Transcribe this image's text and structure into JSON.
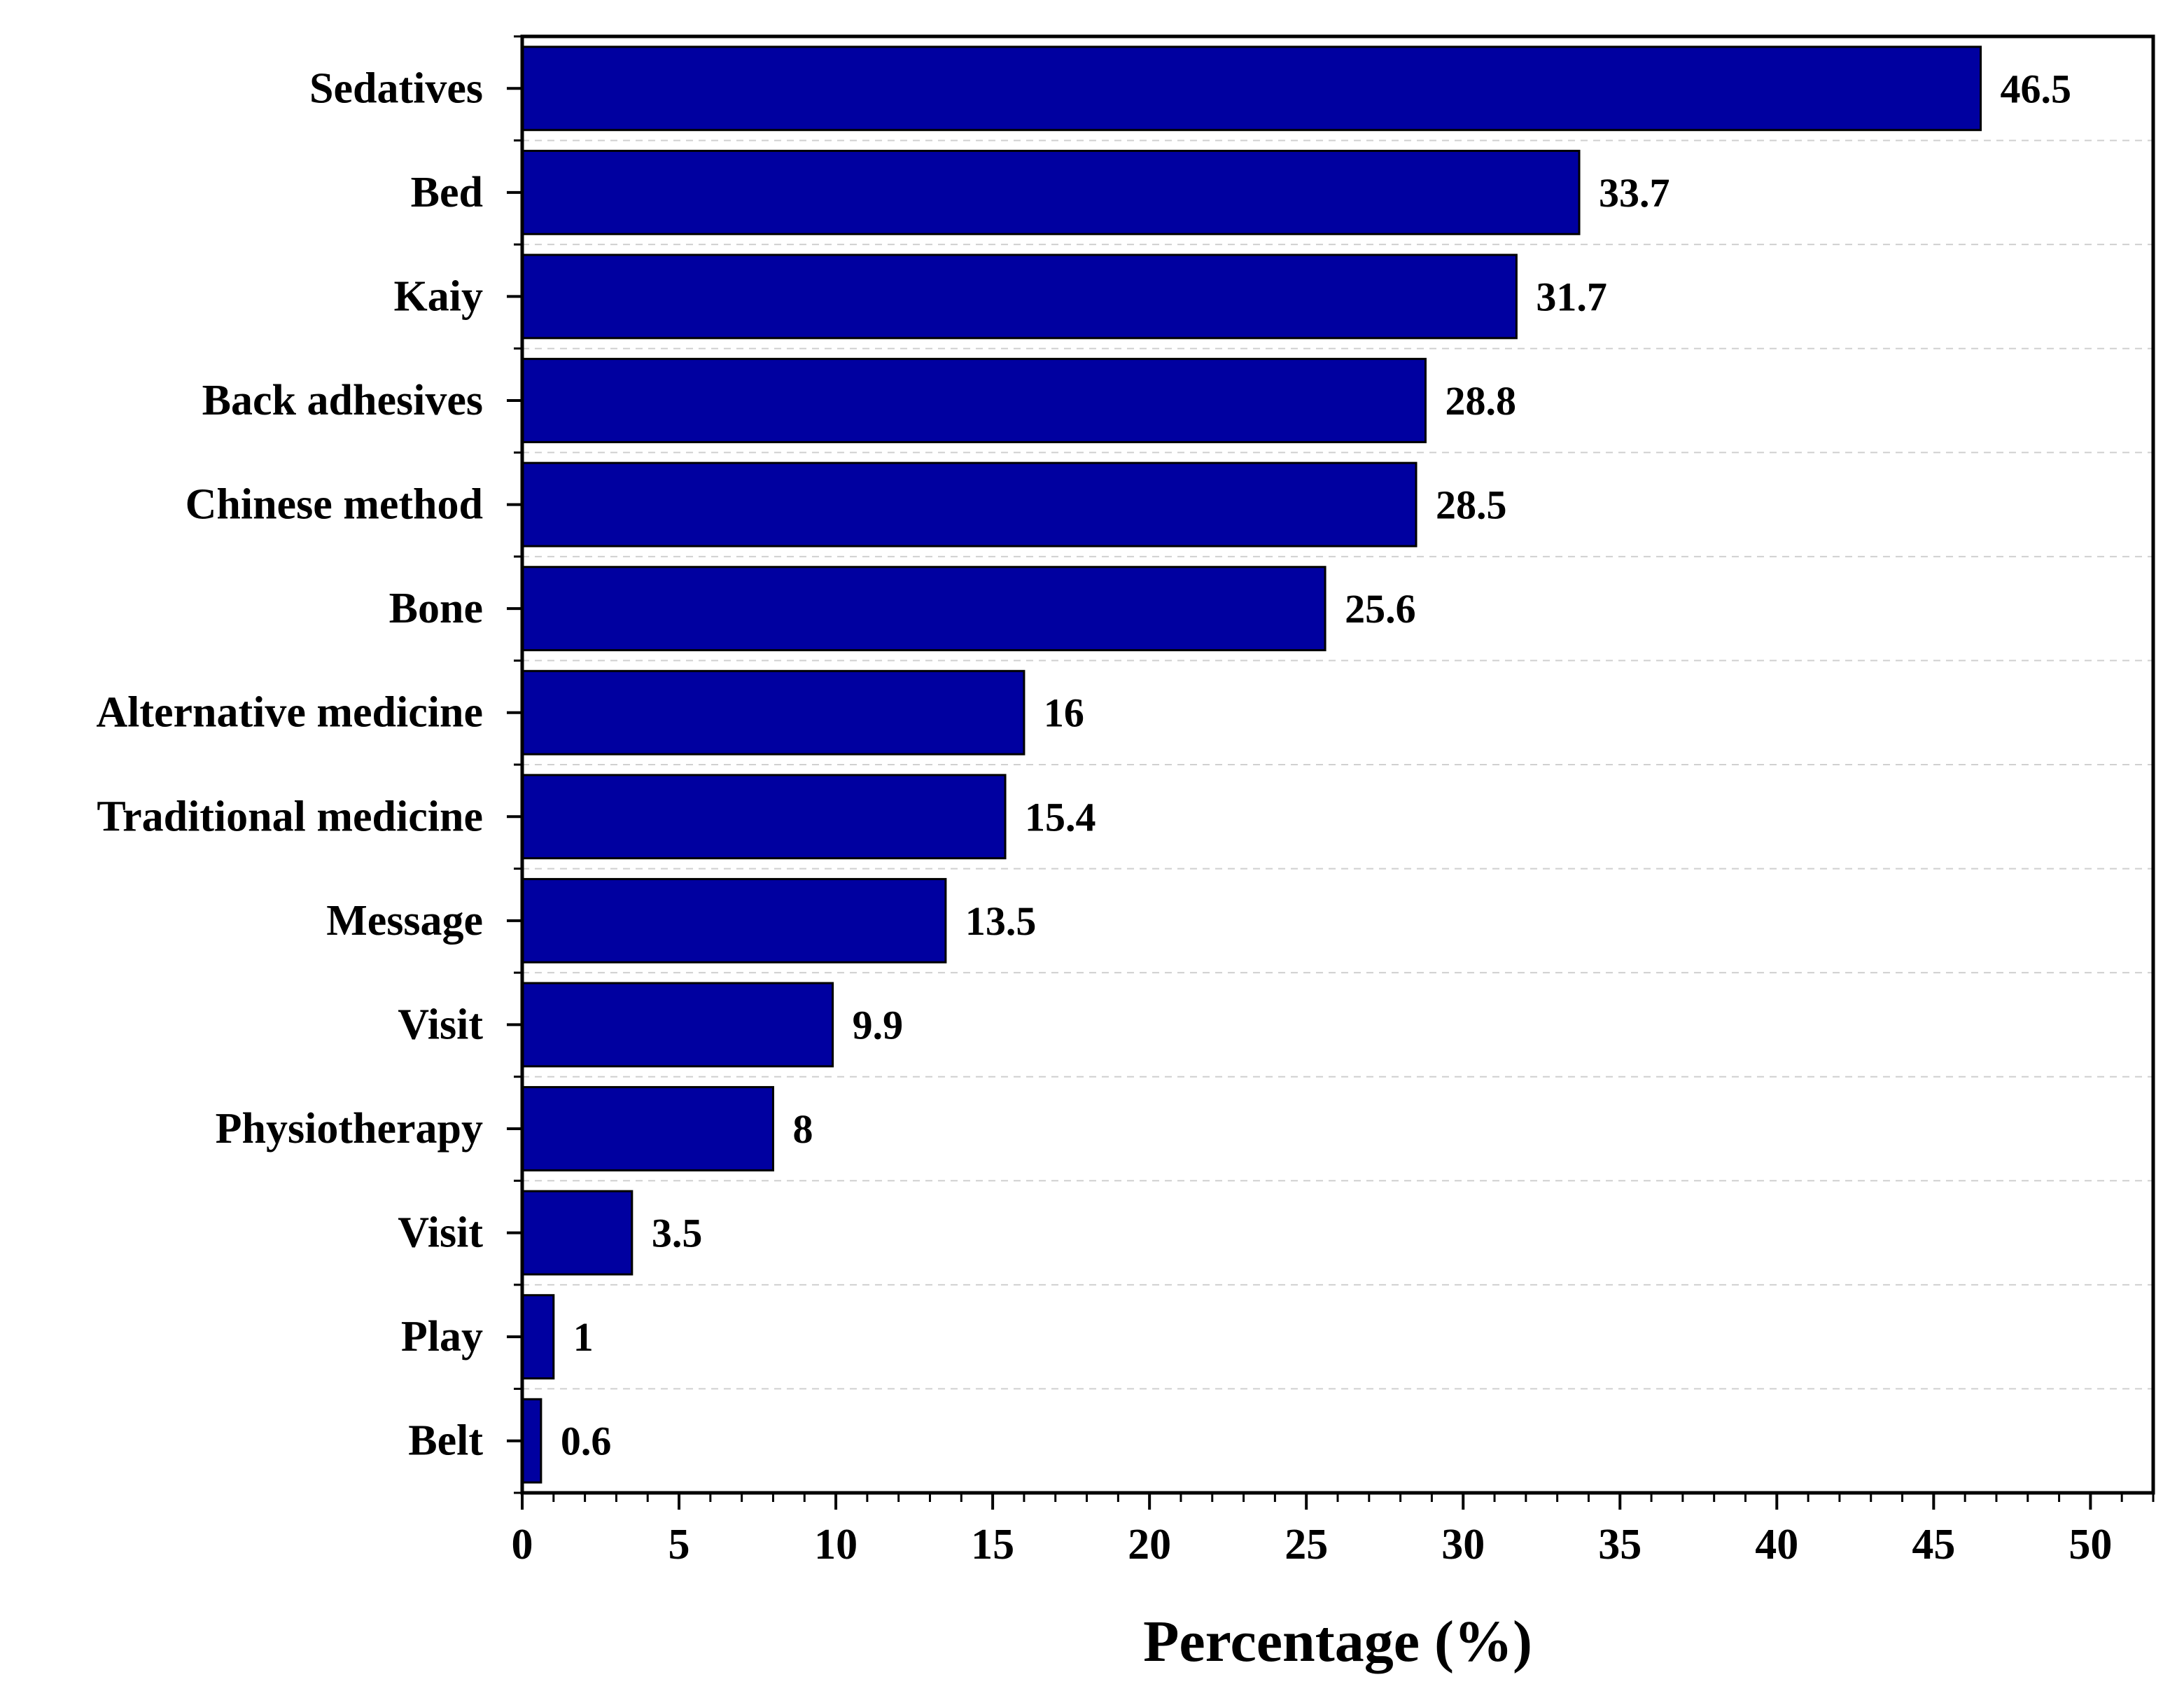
{
  "chart_data": {
    "type": "bar",
    "orientation": "horizontal",
    "categories": [
      "Sedatives",
      "Bed",
      "Kaiy",
      "Back adhesives",
      "Chinese method",
      "Bone",
      "Alternative medicine",
      "Traditional medicine",
      "Message",
      "Visit",
      "Physiotherapy",
      "Visit",
      "Play",
      "Belt"
    ],
    "values": [
      46.5,
      33.7,
      31.7,
      28.8,
      28.5,
      25.6,
      16,
      15.4,
      13.5,
      9.9,
      8,
      3.5,
      1,
      0.6
    ],
    "data_labels": [
      "46.5",
      "33.7",
      "31.7",
      "28.8",
      "28.5",
      "25.6",
      "16",
      "15.4",
      "13.5",
      "9.9",
      "8",
      "3.5",
      "1",
      "0.6"
    ],
    "title": "",
    "xlabel": "Percentage (%)",
    "ylabel": "",
    "xlim": [
      0,
      52
    ],
    "xticks": [
      0,
      5,
      10,
      15,
      20,
      25,
      30,
      35,
      40,
      45,
      50
    ],
    "xtick_labels": [
      "0",
      "5",
      "10",
      "15",
      "20",
      "25",
      "30",
      "35",
      "40",
      "45",
      "50"
    ],
    "grid": "horizontal dashed",
    "legend": "none",
    "colors": {
      "bar_fill": "#0000A0",
      "bar_stroke": "#000000",
      "grid": "#d0d0d0",
      "axis": "#000000"
    }
  }
}
